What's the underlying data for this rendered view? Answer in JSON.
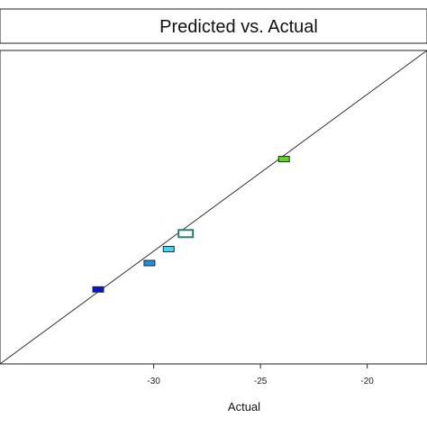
{
  "chart_data": {
    "type": "scatter",
    "title": "Predicted vs. Actual",
    "xlabel": "Actual",
    "ylabel": "",
    "xlim": [
      -37.2,
      -17.2
    ],
    "ylim": [
      -37.7,
      -17.5
    ],
    "x_ticks": [
      -30,
      -25,
      -20
    ],
    "x_tick_labels": [
      "-30",
      "-25",
      "-20"
    ],
    "grid": false,
    "legend": "none",
    "fit_line": {
      "from": [
        -37.2,
        -37.7
      ],
      "to": [
        -17.2,
        -17.5
      ]
    },
    "points": [
      {
        "x": -32.6,
        "y": -32.9,
        "color": "#0b12d6",
        "style": "filled"
      },
      {
        "x": -30.2,
        "y": -31.2,
        "color": "#1e8fe0",
        "style": "filled"
      },
      {
        "x": -29.3,
        "y": -30.3,
        "color": "#4dd2ee",
        "style": "filled"
      },
      {
        "x": -28.5,
        "y": -29.3,
        "color": "#2e7d73",
        "style": "hollow"
      },
      {
        "x": -23.9,
        "y": -24.5,
        "color": "#6ad02a",
        "style": "filled"
      }
    ]
  }
}
